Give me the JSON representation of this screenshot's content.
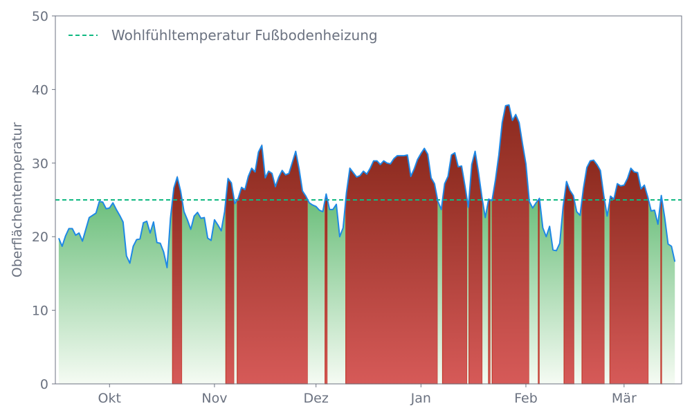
{
  "chart_data": {
    "type": "area",
    "title": "",
    "xlabel": "",
    "ylabel": "Oberflächentemperatur",
    "ylim": [
      0,
      50
    ],
    "yticks": [
      0,
      10,
      20,
      30,
      40,
      50
    ],
    "grid": false,
    "legend_position": "top-left",
    "x_ticks": [
      {
        "label": "Okt",
        "date": "2023-10-01"
      },
      {
        "label": "Nov",
        "date": "2023-11-01"
      },
      {
        "label": "Dez",
        "date": "2023-12-01"
      },
      {
        "label": "Jan",
        "date": "2024-01-01"
      },
      {
        "label": "Feb",
        "date": "2024-02-01"
      },
      {
        "label": "Mär",
        "date": "2024-03-01"
      }
    ],
    "x_range": [
      "2023-09-15",
      "2024-03-18"
    ],
    "threshold": {
      "name": "Wohlfühltemperatur Fußbodenheizung",
      "value": 25,
      "color": "#10b981"
    },
    "colors": {
      "line": "#1e88e5",
      "below_fill_top": "#6cbf7c",
      "below_fill_bottom": "#f5fbf3",
      "above_fill_top": "#8b2a1e",
      "above_fill_bottom": "#d65a58"
    },
    "series": [
      {
        "start_date": "2023-09-16",
        "values": [
          19.8,
          18.7,
          20.1,
          21.1,
          21.1,
          20.2,
          20.5,
          19.4,
          21.0,
          22.6,
          22.9,
          23.2,
          24.8,
          24.7,
          23.8,
          23.9,
          24.6,
          23.7,
          22.9,
          22.0,
          17.4,
          16.4,
          18.7,
          19.6,
          19.7,
          21.9,
          22.1,
          20.5,
          22.0,
          19.2,
          19.1,
          17.9,
          15.8,
          22.5,
          26.6,
          28.1,
          26.2,
          23.4,
          22.3,
          21.0,
          22.8,
          23.3,
          22.5,
          22.6,
          19.8,
          19.5,
          22.3,
          21.6,
          20.8,
          23.4,
          27.9,
          27.3,
          24.5,
          25.2,
          26.7,
          26.4,
          28.2,
          29.3,
          28.8,
          31.5,
          32.4,
          28.0,
          28.9,
          28.6,
          26.8,
          28.1,
          29.0,
          28.4,
          28.6,
          30.1,
          31.6,
          29.2,
          26.2,
          25.5,
          24.6,
          24.3,
          24.1,
          23.6,
          23.4,
          25.8,
          23.7,
          23.7,
          24.4,
          20.0,
          21.2,
          26.0,
          29.3,
          28.7,
          28.1,
          28.3,
          28.9,
          28.5,
          29.3,
          30.3,
          30.3,
          29.8,
          30.3,
          30.0,
          29.9,
          30.6,
          31.0,
          31.0,
          31.0,
          31.1,
          28.2,
          29.2,
          30.5,
          31.3,
          32.0,
          31.2,
          28.0,
          27.2,
          24.8,
          23.7,
          27.2,
          28.2,
          31.1,
          31.4,
          29.5,
          29.6,
          26.9,
          24.0,
          29.8,
          31.6,
          28.7,
          25.4,
          22.6,
          25.1,
          24.9,
          27.7,
          31.1,
          35.5,
          37.8,
          37.9,
          35.8,
          36.6,
          35.5,
          32.6,
          29.9,
          24.8,
          23.9,
          24.6,
          25.2,
          21.2,
          20.0,
          21.4,
          18.2,
          18.1,
          19.1,
          24.1,
          27.5,
          26.3,
          25.6,
          23.4,
          22.9,
          26.6,
          29.4,
          30.3,
          30.4,
          29.8,
          29.0,
          25.6,
          22.8,
          25.5,
          25.1,
          27.2,
          26.9,
          27.0,
          27.9,
          29.3,
          28.8,
          28.7,
          26.5,
          27.0,
          25.4,
          23.5,
          23.6,
          21.7,
          25.6,
          22.6,
          19.0,
          18.7,
          16.6
        ]
      }
    ]
  }
}
